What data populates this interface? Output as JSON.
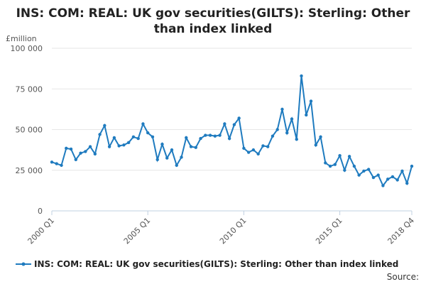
{
  "chart_data": {
    "type": "line",
    "title_line1": "INS: COM: REAL: UK gov securities(GILTS): Sterling: Other",
    "title_line2": "than index linked",
    "unit_label": "£million",
    "ylim": [
      0,
      100000
    ],
    "yticks": [
      {
        "value": 0,
        "label": "0"
      },
      {
        "value": 25000,
        "label": "25 000"
      },
      {
        "value": 50000,
        "label": "50 000"
      },
      {
        "value": 75000,
        "label": "75 000"
      },
      {
        "value": 100000,
        "label": "100 000"
      }
    ],
    "xticks": [
      {
        "index": 0,
        "label": "2000 Q1"
      },
      {
        "index": 20,
        "label": "2005 Q1"
      },
      {
        "index": 40,
        "label": "2010 Q1"
      },
      {
        "index": 60,
        "label": "2015 Q1"
      },
      {
        "index": 75,
        "label": "2018 Q4"
      }
    ],
    "grid": true,
    "legend_position": "bottom",
    "color": "#1f7bbf",
    "source_label": "Source:",
    "series": [
      {
        "name": "INS: COM: REAL: UK gov securities(GILTS): Sterling: Other than index linked",
        "x": [
          "2000 Q1",
          "2000 Q2",
          "2000 Q3",
          "2000 Q4",
          "2001 Q1",
          "2001 Q2",
          "2001 Q3",
          "2001 Q4",
          "2002 Q1",
          "2002 Q2",
          "2002 Q3",
          "2002 Q4",
          "2003 Q1",
          "2003 Q2",
          "2003 Q3",
          "2003 Q4",
          "2004 Q1",
          "2004 Q2",
          "2004 Q3",
          "2004 Q4",
          "2005 Q1",
          "2005 Q2",
          "2005 Q3",
          "2005 Q4",
          "2006 Q1",
          "2006 Q2",
          "2006 Q3",
          "2006 Q4",
          "2007 Q1",
          "2007 Q2",
          "2007 Q3",
          "2007 Q4",
          "2008 Q1",
          "2008 Q2",
          "2008 Q3",
          "2008 Q4",
          "2009 Q1",
          "2009 Q2",
          "2009 Q3",
          "2009 Q4",
          "2010 Q1",
          "2010 Q2",
          "2010 Q3",
          "2010 Q4",
          "2011 Q1",
          "2011 Q2",
          "2011 Q3",
          "2011 Q4",
          "2012 Q1",
          "2012 Q2",
          "2012 Q3",
          "2012 Q4",
          "2013 Q1",
          "2013 Q2",
          "2013 Q3",
          "2013 Q4",
          "2014 Q1",
          "2014 Q2",
          "2014 Q3",
          "2014 Q4",
          "2015 Q1",
          "2015 Q2",
          "2015 Q3",
          "2015 Q4",
          "2016 Q1",
          "2016 Q2",
          "2016 Q3",
          "2016 Q4",
          "2017 Q1",
          "2017 Q2",
          "2017 Q3",
          "2017 Q4",
          "2018 Q1",
          "2018 Q2",
          "2018 Q3",
          "2018 Q4"
        ],
        "values": [
          30000,
          29000,
          28000,
          38500,
          38000,
          31500,
          35500,
          36500,
          39500,
          35000,
          47000,
          52500,
          39500,
          45000,
          40000,
          40500,
          42000,
          45500,
          44500,
          53500,
          48000,
          45500,
          31500,
          41000,
          32500,
          37500,
          28000,
          33000,
          45000,
          39500,
          39000,
          44500,
          46500,
          46500,
          46000,
          46500,
          53500,
          44500,
          53000,
          57000,
          38500,
          36000,
          37500,
          35000,
          40000,
          39500,
          46000,
          50000,
          62500,
          48000,
          56500,
          44000,
          83000,
          59000,
          67500,
          40500,
          45500,
          29500,
          27500,
          28500,
          34000,
          25000,
          33500,
          27500,
          22000,
          24500,
          25500,
          20500,
          22000,
          15500,
          19500,
          21000,
          19000,
          24500,
          17000,
          27500
        ]
      }
    ]
  }
}
